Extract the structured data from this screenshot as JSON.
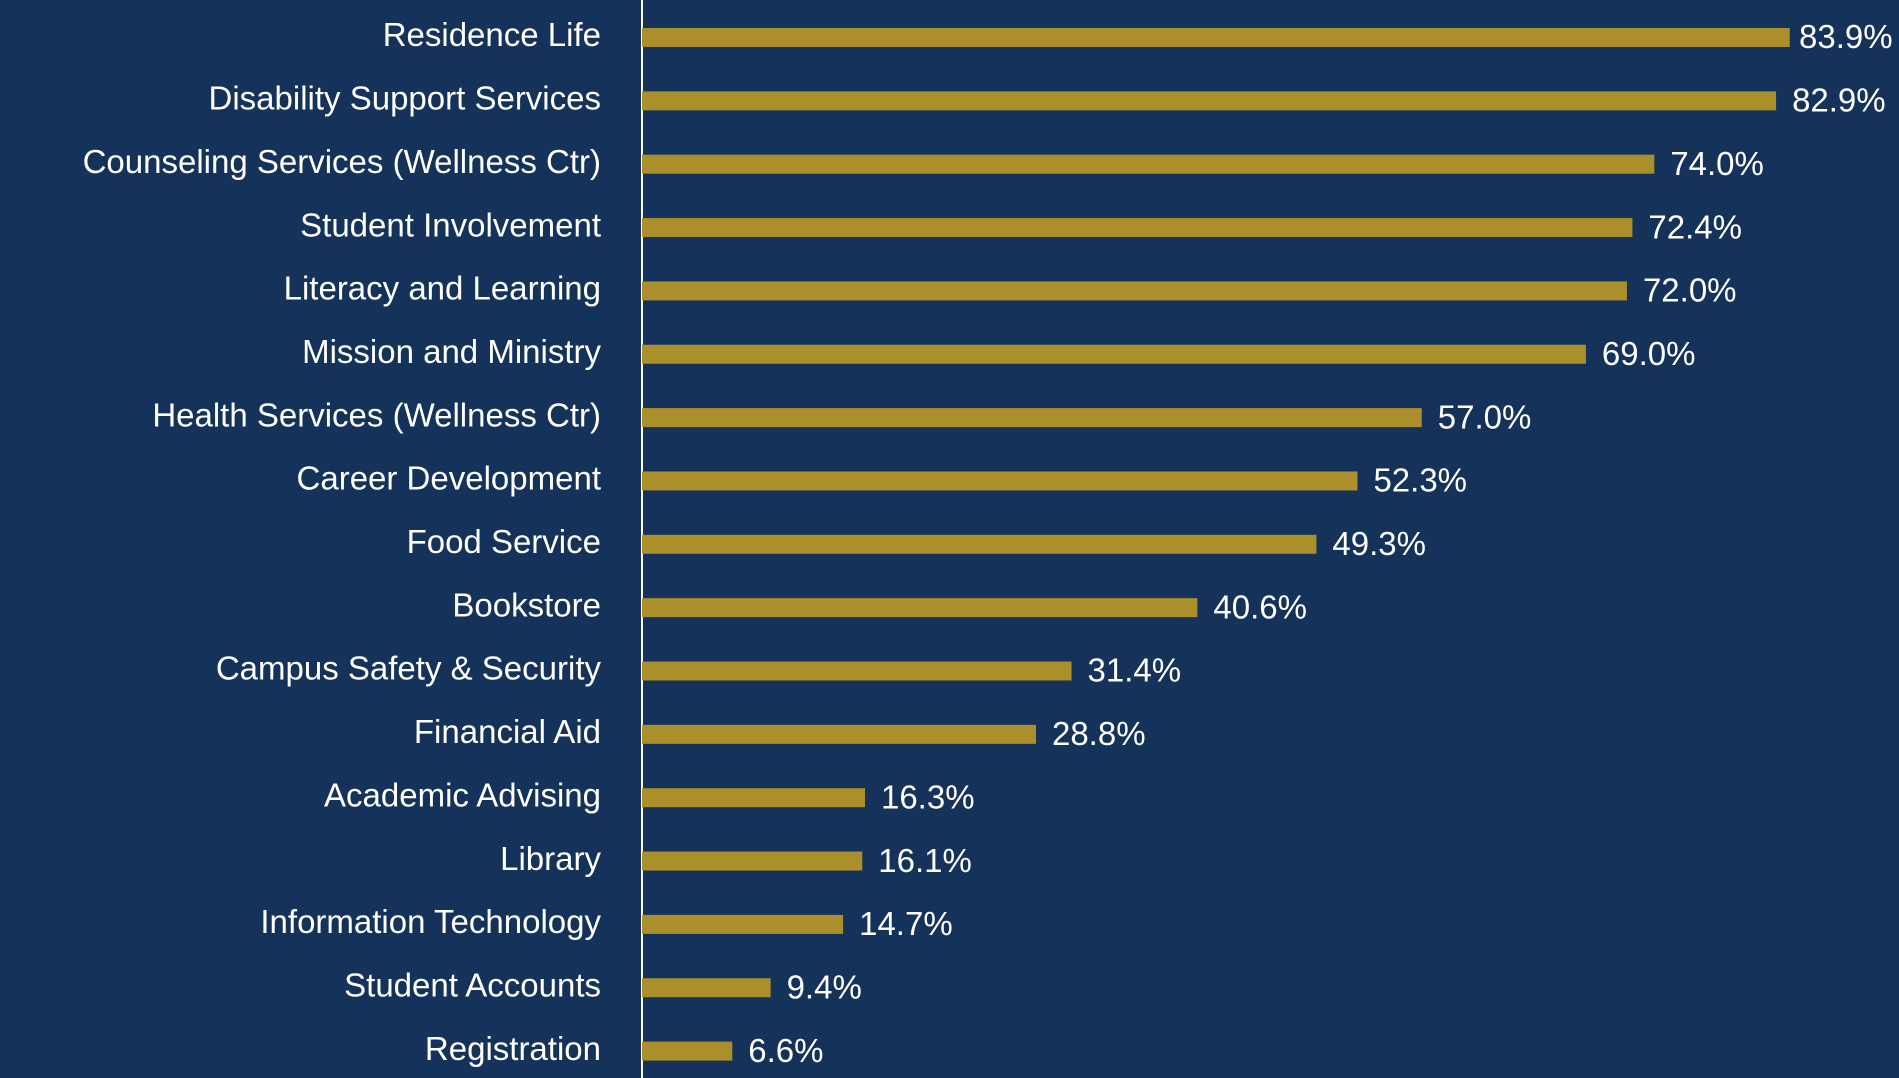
{
  "chart_data": {
    "type": "bar",
    "orientation": "horizontal",
    "categories": [
      "Residence Life",
      "Disability Support Services",
      "Counseling Services (Wellness Ctr)",
      "Student Involvement",
      "Literacy and Learning",
      "Mission and Ministry",
      "Health Services (Wellness Ctr)",
      "Career Development",
      "Food Service",
      "Bookstore",
      "Campus Safety & Security",
      "Financial Aid",
      "Academic Advising",
      "Library",
      "Information Technology",
      "Student Accounts",
      "Registration"
    ],
    "values": [
      83.9,
      82.9,
      74.0,
      72.4,
      72.0,
      69.0,
      57.0,
      52.3,
      49.3,
      40.6,
      31.4,
      28.8,
      16.3,
      16.1,
      14.7,
      9.4,
      6.6
    ],
    "value_labels": [
      "83.9%",
      "82.9%",
      "74.0%",
      "72.4%",
      "72.0%",
      "69.0%",
      "57.0%",
      "52.3%",
      "49.3%",
      "40.6%",
      "31.4%",
      "28.8%",
      "16.3%",
      "16.1%",
      "14.7%",
      "9.4%",
      "6.6%"
    ],
    "color": "#ab8f2a"
  }
}
